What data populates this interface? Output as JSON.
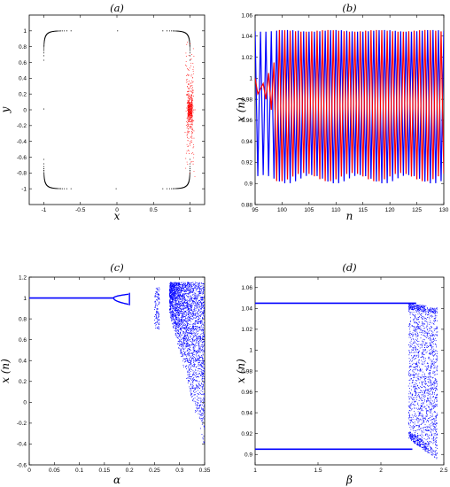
{
  "chart_data": [
    {
      "panel_title": "(a)",
      "type": "scatter",
      "xlabel": "x",
      "ylabel": "y",
      "xlim": [
        -1.2,
        1.2
      ],
      "ylim": [
        -1.2,
        1.2
      ],
      "xticks": [
        -1,
        -0.5,
        0,
        0.5,
        1
      ],
      "yticks": [
        -1,
        -0.8,
        -0.6,
        -0.4,
        -0.2,
        0,
        0.2,
        0.4,
        0.6,
        0.8,
        1
      ],
      "xtick_labels": [
        "-1",
        "-0.5",
        "0",
        "0.5",
        "1"
      ],
      "ytick_labels": [
        "-1",
        "-0.8",
        "-0.6",
        "-0.4",
        "-0.2",
        "0",
        "0.2",
        "0.4",
        "0.6",
        "0.8",
        "1"
      ],
      "series": [
        {
          "color": "#000000",
          "description_shape": "superellipse",
          "exponent": 16,
          "radius": 1.0
        },
        {
          "color": "#ff0000",
          "center": [
            1.0,
            0.0
          ],
          "x_spread": [
            0.92,
            1.06
          ],
          "y_spread": [
            -0.9,
            0.9
          ]
        }
      ]
    },
    {
      "panel_title": "(b)",
      "type": "line",
      "xlabel": "n",
      "ylabel": "x (n)",
      "xlim": [
        95,
        130
      ],
      "ylim": [
        0.88,
        1.06
      ],
      "xticks": [
        95,
        100,
        105,
        110,
        115,
        120,
        125,
        130
      ],
      "yticks": [
        0.88,
        0.9,
        0.92,
        0.94,
        0.96,
        0.98,
        1,
        1.02,
        1.04,
        1.06
      ],
      "xtick_labels": [
        "95",
        "100",
        "105",
        "110",
        "115",
        "120",
        "125",
        "130"
      ],
      "ytick_labels": [
        "0.88",
        "0.9",
        "0.92",
        "0.94",
        "0.96",
        "0.98",
        "1",
        "1.02",
        "1.04",
        "1.06"
      ],
      "series": [
        {
          "color": "#0000ff",
          "high": 1.045,
          "low": 0.904,
          "phase": 0
        },
        {
          "color": "#ff0000",
          "high": 1.045,
          "low": 0.906,
          "phase": 1
        }
      ]
    },
    {
      "panel_title": "(c)",
      "type": "scatter",
      "xlabel": "α",
      "ylabel": "x (n)",
      "xlim": [
        0,
        0.35
      ],
      "ylim": [
        -0.6,
        1.2
      ],
      "xticks": [
        0,
        0.05,
        0.1,
        0.15,
        0.2,
        0.25,
        0.3,
        0.35
      ],
      "yticks": [
        -0.6,
        -0.4,
        -0.2,
        0,
        0.2,
        0.4,
        0.6,
        0.8,
        1,
        1.2
      ],
      "xtick_labels": [
        "0",
        "0.05",
        "0.1",
        "0.15",
        "0.2",
        "0.25",
        "0.3",
        "0.35"
      ],
      "ytick_labels": [
        "-0.6",
        "-0.4",
        "-0.2",
        "0",
        "0.2",
        "0.4",
        "0.6",
        "0.8",
        "1",
        "1.2"
      ],
      "series": [
        {
          "color": "#0000ff",
          "fixed_point": 1.0,
          "bifurcation_alpha": 0.168,
          "chaos_onset_alpha": 0.28,
          "lower_envelope_end": -0.45
        }
      ]
    },
    {
      "panel_title": "(d)",
      "type": "scatter",
      "xlabel": "β",
      "ylabel": "x (n)",
      "xlim": [
        1,
        2.5
      ],
      "ylim": [
        0.89,
        1.07
      ],
      "xticks": [
        1,
        1.5,
        2,
        2.5
      ],
      "yticks": [
        0.9,
        0.92,
        0.94,
        0.96,
        0.98,
        1,
        1.02,
        1.04,
        1.06
      ],
      "xtick_labels": [
        "1",
        "1.5",
        "2",
        "2.5"
      ],
      "ytick_labels": [
        "0.9",
        "0.92",
        "0.94",
        "0.96",
        "0.98",
        "1",
        "1.02",
        "1.04",
        "1.06"
      ],
      "series": [
        {
          "color": "#0000ff",
          "upper_branch": 1.045,
          "lower_branch": 0.905,
          "chaos_onset_beta": 2.22,
          "chaos_end_beta": 2.45
        }
      ]
    }
  ]
}
